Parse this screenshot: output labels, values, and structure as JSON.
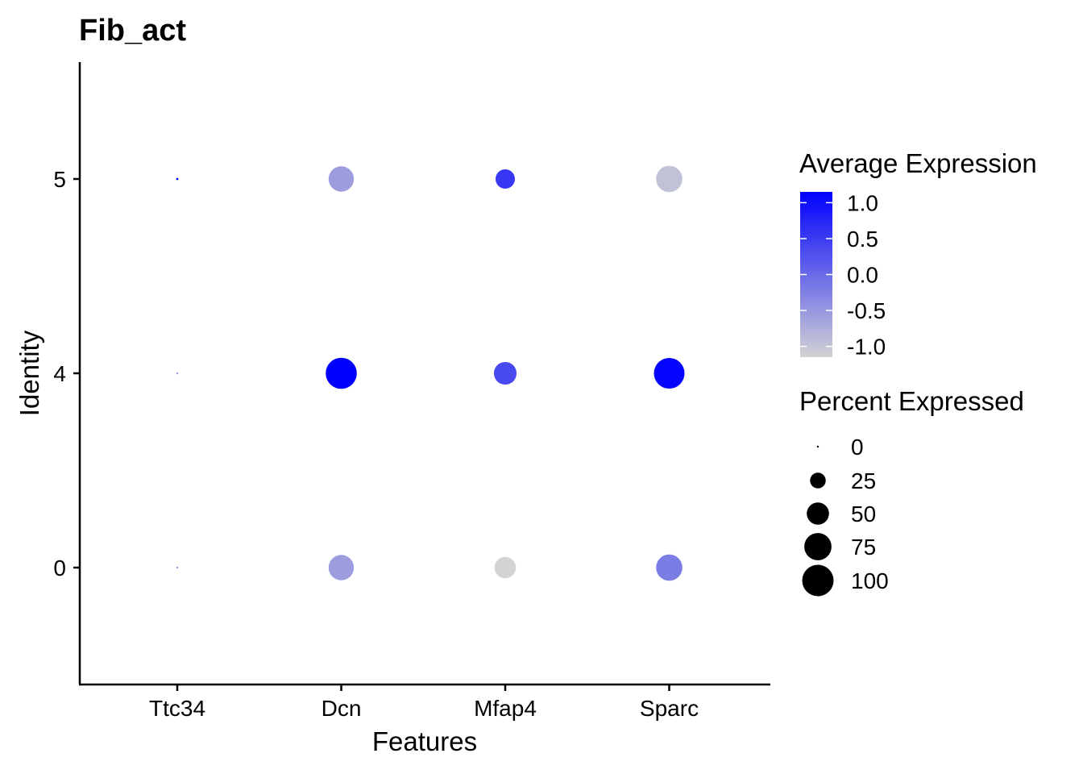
{
  "chart_data": {
    "type": "dot",
    "title": "Fib_act",
    "xlabel": "Features",
    "ylabel": "Identity",
    "features": [
      "Ttc34",
      "Dcn",
      "Mfap4",
      "Sparc"
    ],
    "identities": [
      "0",
      "4",
      "5"
    ],
    "points": [
      {
        "feature": "Ttc34",
        "identity": "5",
        "avg_exp": 1.15,
        "pct_exp": 0.5
      },
      {
        "feature": "Dcn",
        "identity": "5",
        "avg_exp": -0.55,
        "pct_exp": 65
      },
      {
        "feature": "Mfap4",
        "identity": "5",
        "avg_exp": 0.55,
        "pct_exp": 38
      },
      {
        "feature": "Sparc",
        "identity": "5",
        "avg_exp": -0.95,
        "pct_exp": 70
      },
      {
        "feature": "Ttc34",
        "identity": "4",
        "avg_exp": -0.55,
        "pct_exp": 0.3
      },
      {
        "feature": "Dcn",
        "identity": "4",
        "avg_exp": 1.15,
        "pct_exp": 98
      },
      {
        "feature": "Mfap4",
        "identity": "4",
        "avg_exp": 0.35,
        "pct_exp": 52
      },
      {
        "feature": "Sparc",
        "identity": "4",
        "avg_exp": 1.1,
        "pct_exp": 95
      },
      {
        "feature": "Ttc34",
        "identity": "0",
        "avg_exp": -0.55,
        "pct_exp": 0.3
      },
      {
        "feature": "Dcn",
        "identity": "0",
        "avg_exp": -0.55,
        "pct_exp": 65
      },
      {
        "feature": "Mfap4",
        "identity": "0",
        "avg_exp": -1.15,
        "pct_exp": 46
      },
      {
        "feature": "Sparc",
        "identity": "0",
        "avg_exp": -0.2,
        "pct_exp": 70
      }
    ],
    "color_legend": {
      "title": "Average Expression",
      "ticks": [
        1.0,
        0.5,
        0.0,
        -0.5,
        -1.0
      ],
      "tick_labels": [
        "1.0",
        "0.5",
        "0.0",
        "-0.5",
        "-1.0"
      ],
      "range": [
        -1.15,
        1.15
      ],
      "low_color": "#d3d3d3",
      "high_color": "#0000ff"
    },
    "size_legend": {
      "title": "Percent Expressed",
      "values": [
        0,
        25,
        50,
        75,
        100
      ],
      "labels": [
        "0",
        "25",
        "50",
        "75",
        "100"
      ]
    },
    "legend_position": "right",
    "grid": false
  }
}
